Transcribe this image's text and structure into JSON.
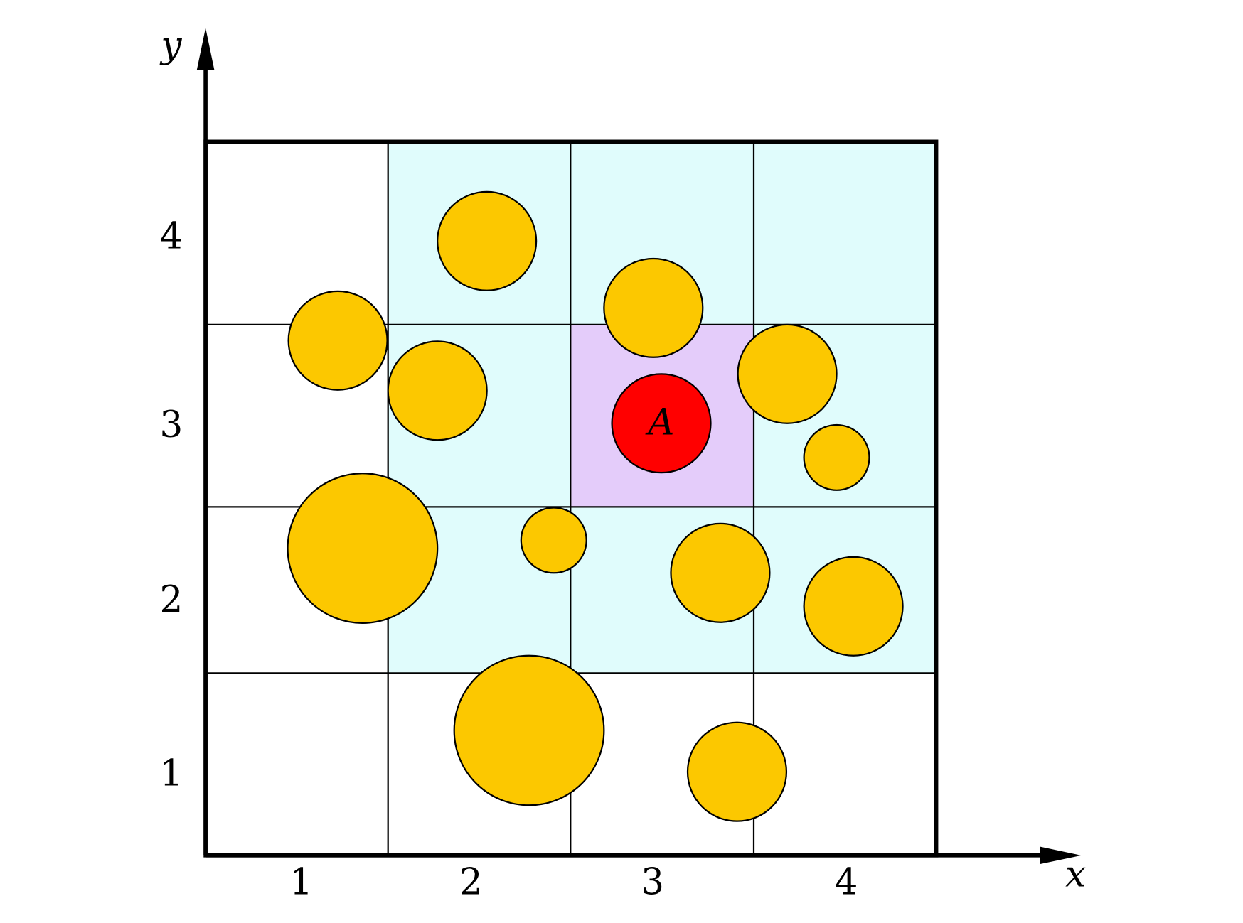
{
  "axes": {
    "x_label": "x",
    "y_label": "y",
    "x_ticks": [
      "1",
      "2",
      "3",
      "4"
    ],
    "y_ticks": [
      "1",
      "2",
      "3",
      "4"
    ]
  },
  "highlight_label": "A"
}
